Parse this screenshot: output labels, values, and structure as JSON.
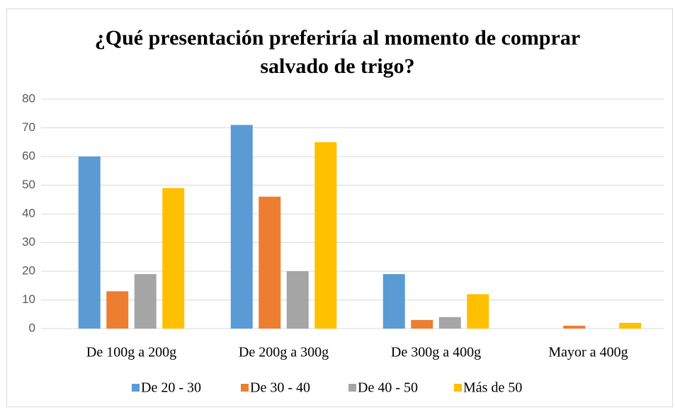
{
  "chart_data": {
    "type": "bar",
    "title": "¿Qué presentación preferiría al momento de comprar salvado de trigo?",
    "categories": [
      "De 100g a 200g",
      "De 200g a 300g",
      "De 300g a 400g",
      "Mayor a 400g"
    ],
    "series": [
      {
        "name": "De 20 - 30",
        "color": "#5b9bd5",
        "values": [
          60,
          71,
          19,
          0
        ]
      },
      {
        "name": "De 30 - 40",
        "color": "#ed7d31",
        "values": [
          13,
          46,
          3,
          1
        ]
      },
      {
        "name": "De 40 - 50",
        "color": "#a5a5a5",
        "values": [
          19,
          20,
          4,
          0
        ]
      },
      {
        "name": "Más de 50",
        "color": "#ffc000",
        "values": [
          49,
          65,
          12,
          2
        ]
      }
    ],
    "ylim": [
      0,
      80
    ],
    "yticks": [
      0,
      10,
      20,
      30,
      40,
      50,
      60,
      70,
      80
    ],
    "grid": true,
    "legend": "bottom"
  }
}
